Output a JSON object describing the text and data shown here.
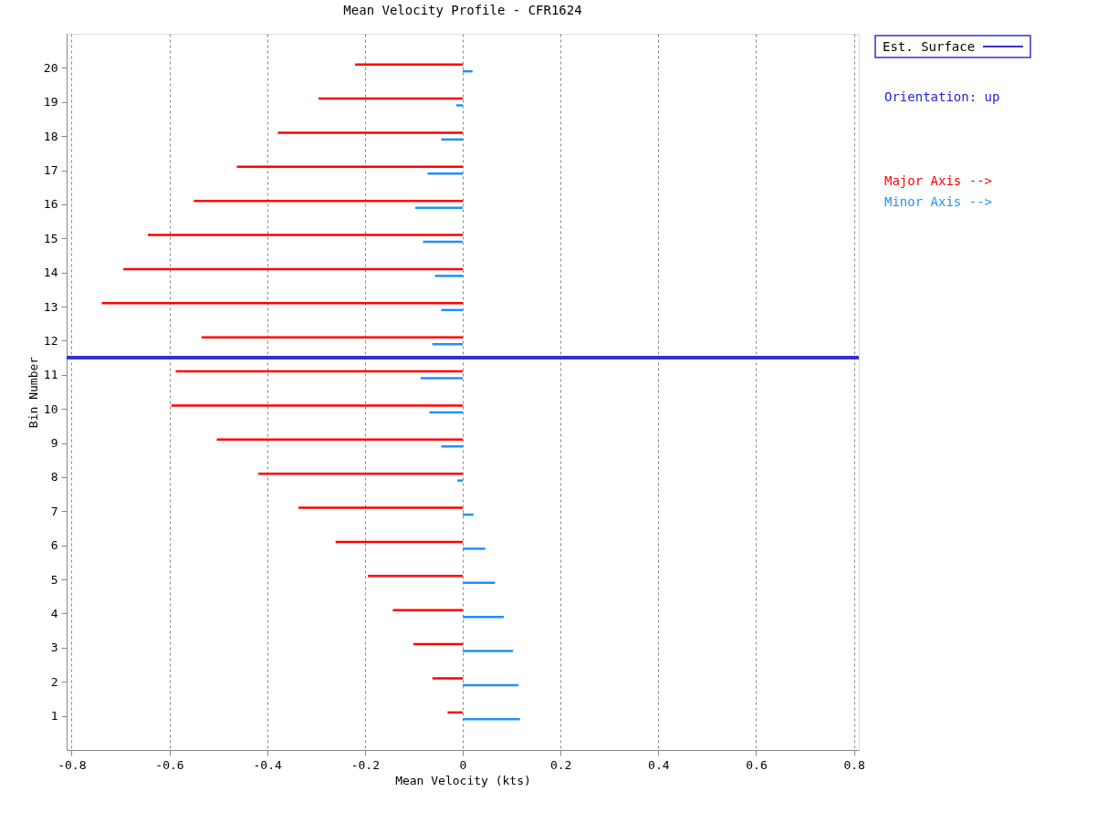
{
  "chart_data": {
    "type": "bar",
    "orientation": "horizontal",
    "title": "Mean Velocity Profile - CFR1624",
    "xlabel": "Mean Velocity (kts)",
    "ylabel": "Bin Number",
    "series": [
      {
        "name": "Major Axis -->",
        "color": "#ff0000",
        "x": [
          20.1,
          19.1,
          18.1,
          17.1,
          16.1,
          15.1,
          14.1,
          13.1,
          12.1,
          11.1,
          10.1,
          9.1,
          8.1,
          7.1,
          6.1,
          5.1,
          4.1,
          3.1,
          2.1,
          1.1
        ],
        "values": [
          -0.22,
          -0.295,
          -0.378,
          -0.462,
          -0.55,
          -0.644,
          -0.694,
          -0.738,
          -0.534,
          -0.587,
          -0.596,
          -0.503,
          -0.418,
          -0.336,
          -0.26,
          -0.194,
          -0.143,
          -0.101,
          -0.062,
          -0.031
        ]
      },
      {
        "name": "Minor Axis -->",
        "color": "#1e90ff",
        "x": [
          19.9,
          18.9,
          17.9,
          16.9,
          15.9,
          14.9,
          13.9,
          12.9,
          11.9,
          10.9,
          9.9,
          8.9,
          7.9,
          6.9,
          5.9,
          4.9,
          3.9,
          2.9,
          1.9,
          0.9
        ],
        "values": [
          0.02,
          -0.013,
          -0.044,
          -0.072,
          -0.097,
          -0.081,
          -0.057,
          -0.044,
          -0.062,
          -0.086,
          -0.068,
          -0.044,
          -0.011,
          0.022,
          0.046,
          0.066,
          0.084,
          0.103,
          0.114,
          0.117
        ]
      }
    ],
    "xlim": [
      -0.81,
      0.81
    ],
    "xticks": [
      -0.8,
      -0.6,
      -0.4,
      -0.2,
      0,
      0.2,
      0.4,
      0.6,
      0.8
    ],
    "ylim": [
      0,
      21
    ],
    "yticks": [
      1,
      2,
      3,
      4,
      5,
      6,
      7,
      8,
      9,
      10,
      11,
      12,
      13,
      14,
      15,
      16,
      17,
      18,
      19,
      20
    ],
    "ref_lines": [
      {
        "axis": "y",
        "value": 11.5,
        "label": "Est. Surface",
        "color": "#3333cc"
      }
    ],
    "annotations": [
      "Orientation: up"
    ],
    "grid": "x",
    "legend": "top right"
  }
}
